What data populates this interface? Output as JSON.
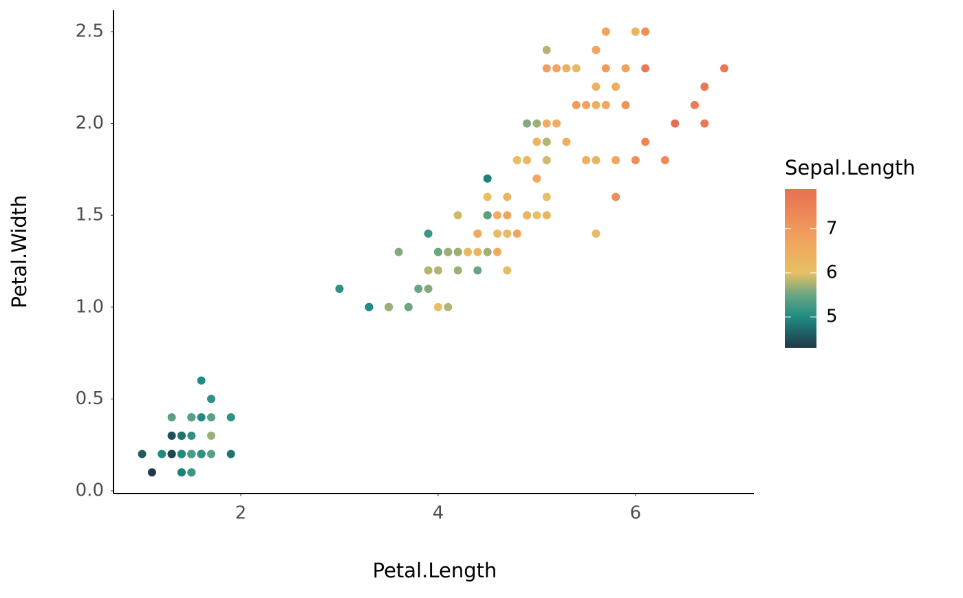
{
  "chart_data": {
    "type": "scatter",
    "x_label": "Petal.Length",
    "y_label": "Petal.Width",
    "xlim": [
      0.71,
      7.2
    ],
    "xticks": [
      2,
      4,
      6
    ],
    "ylim": [
      -0.015,
      2.616
    ],
    "yticks": [
      0.0,
      0.5,
      1.0,
      1.5,
      2.0,
      2.5
    ],
    "y_tick_labels": [
      "0.0",
      "0.5",
      "1.0",
      "1.5",
      "2.0",
      "2.5"
    ],
    "x": [
      1.4,
      1.4,
      1.3,
      1.5,
      1.4,
      1.7,
      1.4,
      1.5,
      1.4,
      1.5,
      1.5,
      1.6,
      1.4,
      1.1,
      1.2,
      1.5,
      1.3,
      1.4,
      1.7,
      1.5,
      1.7,
      1.5,
      1.0,
      1.7,
      1.9,
      1.6,
      1.6,
      1.5,
      1.4,
      1.6,
      1.6,
      1.5,
      1.5,
      1.4,
      1.5,
      1.2,
      1.3,
      1.4,
      1.3,
      1.5,
      1.3,
      1.3,
      1.3,
      1.6,
      1.9,
      1.4,
      1.6,
      1.4,
      1.5,
      1.4,
      4.7,
      4.5,
      4.9,
      4.0,
      4.6,
      4.5,
      4.7,
      3.3,
      4.6,
      3.9,
      3.5,
      4.2,
      4.0,
      4.7,
      3.6,
      4.4,
      4.5,
      4.1,
      4.5,
      3.9,
      4.8,
      4.0,
      4.9,
      4.7,
      4.3,
      4.4,
      4.8,
      5.0,
      4.5,
      3.5,
      3.8,
      3.7,
      3.9,
      5.1,
      4.5,
      4.5,
      4.7,
      4.4,
      4.1,
      4.0,
      4.4,
      4.6,
      4.0,
      3.3,
      4.2,
      4.2,
      4.2,
      4.3,
      3.0,
      4.1,
      6.0,
      5.1,
      5.9,
      5.6,
      5.8,
      6.6,
      4.5,
      6.3,
      5.8,
      6.1,
      5.1,
      5.3,
      5.5,
      5.0,
      5.1,
      5.3,
      5.5,
      6.7,
      6.9,
      5.0,
      5.7,
      4.9,
      6.7,
      4.9,
      5.7,
      6.0,
      4.8,
      4.9,
      5.6,
      5.8,
      6.1,
      6.4,
      5.6,
      5.1,
      5.6,
      6.1,
      5.6,
      5.5,
      4.8,
      5.4,
      5.6,
      5.1,
      5.1,
      5.9,
      5.7,
      5.2,
      5.0,
      5.2,
      5.4,
      5.1
    ],
    "series": [
      {
        "values": [
          0.2,
          0.2,
          0.2,
          0.2,
          0.2,
          0.4,
          0.3,
          0.2,
          0.2,
          0.1,
          0.2,
          0.2,
          0.1,
          0.1,
          0.2,
          0.4,
          0.4,
          0.3,
          0.3,
          0.3,
          0.2,
          0.4,
          0.2,
          0.5,
          0.2,
          0.2,
          0.4,
          0.2,
          0.2,
          0.2,
          0.2,
          0.4,
          0.1,
          0.2,
          0.2,
          0.2,
          0.2,
          0.1,
          0.2,
          0.2,
          0.3,
          0.3,
          0.2,
          0.6,
          0.4,
          0.3,
          0.2,
          0.2,
          0.2,
          0.2,
          1.4,
          1.5,
          1.5,
          1.3,
          1.5,
          1.3,
          1.6,
          1.0,
          1.3,
          1.4,
          1.0,
          1.5,
          1.0,
          1.4,
          1.3,
          1.4,
          1.5,
          1.0,
          1.5,
          1.1,
          1.8,
          1.3,
          1.5,
          1.2,
          1.3,
          1.4,
          1.4,
          1.7,
          1.5,
          1.0,
          1.1,
          1.0,
          1.2,
          1.6,
          1.5,
          1.6,
          1.5,
          1.3,
          1.3,
          1.3,
          1.2,
          1.4,
          1.2,
          1.0,
          1.3,
          1.2,
          1.3,
          1.3,
          1.1,
          1.3,
          2.5,
          1.9,
          2.1,
          1.8,
          2.2,
          2.1,
          1.7,
          1.8,
          1.8,
          2.5,
          2.0,
          1.9,
          2.1,
          2.0,
          2.4,
          2.3,
          1.8,
          2.2,
          2.3,
          1.5,
          2.3,
          2.0,
          2.0,
          1.8,
          2.1,
          1.8,
          1.8,
          1.8,
          2.1,
          1.6,
          1.9,
          2.0,
          2.2,
          1.5,
          1.4,
          2.3,
          2.4,
          1.8,
          1.8,
          2.1,
          2.4,
          2.3,
          1.9,
          2.3,
          2.5,
          2.3,
          1.9,
          2.0,
          2.3,
          1.8
        ],
        "color_values": [
          5.1,
          4.9,
          4.7,
          4.6,
          5.0,
          5.4,
          4.6,
          5.0,
          4.4,
          4.9,
          5.4,
          4.8,
          4.8,
          4.3,
          5.8,
          5.7,
          5.4,
          5.1,
          5.7,
          5.1,
          5.4,
          5.1,
          4.6,
          5.1,
          4.8,
          5.0,
          5.0,
          5.2,
          5.2,
          4.7,
          4.8,
          5.4,
          5.2,
          5.5,
          4.9,
          5.0,
          5.5,
          4.9,
          4.4,
          5.1,
          5.0,
          4.5,
          4.4,
          5.0,
          5.1,
          4.8,
          5.1,
          4.6,
          5.3,
          5.0,
          7.0,
          6.4,
          6.9,
          5.5,
          6.5,
          5.7,
          6.3,
          4.9,
          6.6,
          5.2,
          5.0,
          5.9,
          6.0,
          6.1,
          5.6,
          6.7,
          5.6,
          5.8,
          6.2,
          5.6,
          5.9,
          6.1,
          6.3,
          6.1,
          6.4,
          6.6,
          6.8,
          6.7,
          6.0,
          5.7,
          5.5,
          5.5,
          5.8,
          6.0,
          5.4,
          6.0,
          6.7,
          6.3,
          5.6,
          5.5,
          5.5,
          6.1,
          5.8,
          5.0,
          5.6,
          5.7,
          5.7,
          6.2,
          5.1,
          5.7,
          6.3,
          5.8,
          7.1,
          6.3,
          6.5,
          7.6,
          4.9,
          7.3,
          6.7,
          7.2,
          6.5,
          6.4,
          6.8,
          5.7,
          5.8,
          6.4,
          6.5,
          7.7,
          7.7,
          6.0,
          6.9,
          5.6,
          7.7,
          6.3,
          6.7,
          7.2,
          6.2,
          6.1,
          6.4,
          7.2,
          7.4,
          7.9,
          6.4,
          6.3,
          6.1,
          7.7,
          6.3,
          6.4,
          6.0,
          6.9,
          6.7,
          6.9,
          5.8,
          6.8,
          6.7,
          6.7,
          6.3,
          6.5,
          6.2,
          5.9
        ]
      }
    ],
    "colorbar": {
      "title": "Sepal.Length",
      "lim": [
        4.3,
        7.9
      ],
      "ticks": [
        5,
        6,
        7
      ],
      "colorscale": [
        {
          "value": 4.3,
          "color": "#20394a"
        },
        {
          "value": 5.0,
          "color": "#1f8c84"
        },
        {
          "value": 5.5,
          "color": "#6aa583"
        },
        {
          "value": 6.0,
          "color": "#e6c063"
        },
        {
          "value": 6.8,
          "color": "#f2a15e"
        },
        {
          "value": 7.9,
          "color": "#e76f51"
        }
      ]
    }
  }
}
